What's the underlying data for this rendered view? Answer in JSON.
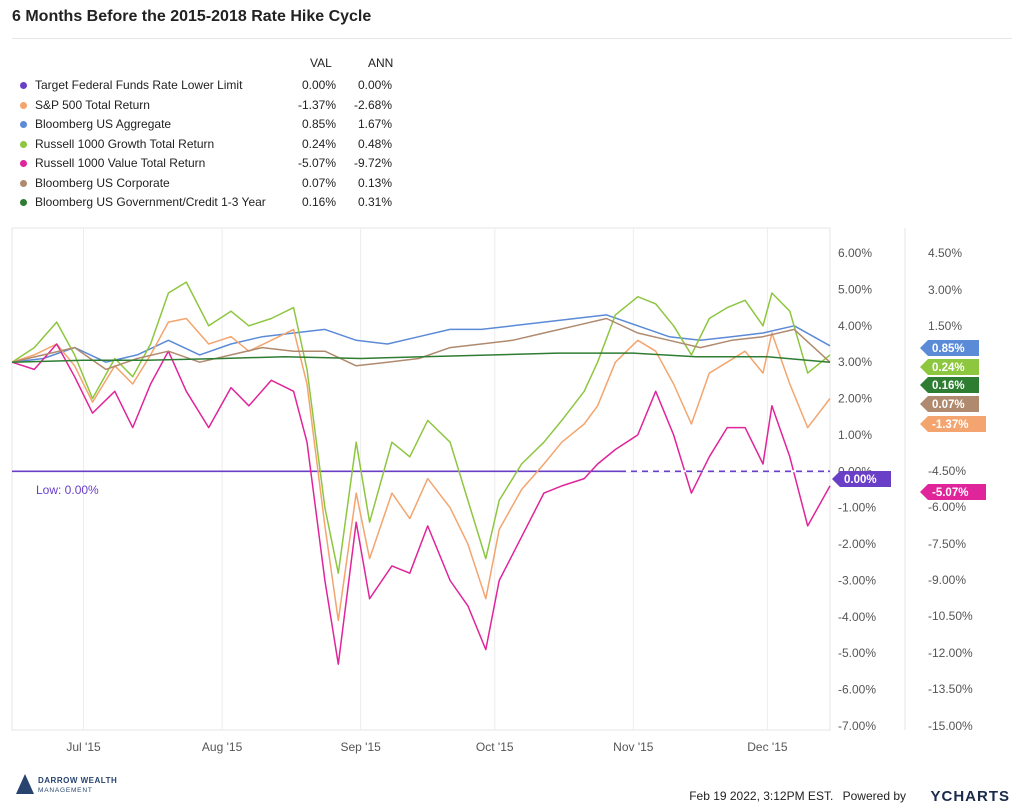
{
  "header": {
    "title": "6 Months Before the 2015-2018 Rate Hike Cycle"
  },
  "legend": {
    "col_val": "VAL",
    "col_ann": "ANN",
    "items": [
      {
        "name": "Target Federal Funds Rate Lower Limit",
        "val": "0.00%",
        "ann": "0.00%",
        "color": "#6a3fc8"
      },
      {
        "name": "S&P 500 Total Return",
        "val": "-1.37%",
        "ann": "-2.68%",
        "color": "#f4a46e"
      },
      {
        "name": "Bloomberg US Aggregate",
        "val": "0.85%",
        "ann": "1.67%",
        "color": "#5b8ad6"
      },
      {
        "name": "Russell 1000 Growth Total Return",
        "val": "0.24%",
        "ann": "0.48%",
        "color": "#8dc63f"
      },
      {
        "name": "Russell 1000 Value Total Return",
        "val": "-5.07%",
        "ann": "-9.72%",
        "color": "#e0249a"
      },
      {
        "name": "Bloomberg US Corporate",
        "val": "0.07%",
        "ann": "0.13%",
        "color": "#b08a6e"
      },
      {
        "name": "Bloomberg US Government/Credit 1-3 Year",
        "val": "0.16%",
        "ann": "0.31%",
        "color": "#2e7d32"
      }
    ]
  },
  "chart_data": {
    "type": "line",
    "title": "6 Months Before the 2015-2018 Rate Hike Cycle",
    "x_range": [
      "2015-06-15",
      "2015-12-15"
    ],
    "x_ticks": [
      {
        "label": "Jul '15",
        "date": "2015-07-01"
      },
      {
        "label": "Aug '15",
        "date": "2015-08-01"
      },
      {
        "label": "Sep '15",
        "date": "2015-09-01"
      },
      {
        "label": "Oct '15",
        "date": "2015-10-01"
      },
      {
        "label": "Nov '15",
        "date": "2015-11-01"
      },
      {
        "label": "Dec '15",
        "date": "2015-12-01"
      }
    ],
    "y_left": {
      "min": -7,
      "max": 6,
      "ticks": [
        "6.00%",
        "5.00%",
        "4.00%",
        "3.00%",
        "2.00%",
        "1.00%",
        "0.00%",
        "-1.00%",
        "-2.00%",
        "-3.00%",
        "-4.00%",
        "-5.00%",
        "-6.00%",
        "-7.00%"
      ]
    },
    "y_right": {
      "ticks": [
        "4.50%",
        "3.00%",
        "1.50%",
        "",
        "-4.50%",
        "-6.00%",
        "-7.50%",
        "-9.00%",
        "-10.50%",
        "-12.00%",
        "-13.50%",
        "-15.00%"
      ]
    },
    "grid": "vertical",
    "annotation": "Low: 0.00%",
    "end_labels": [
      {
        "text": "0.85%",
        "color": "#5b8ad6"
      },
      {
        "text": "0.24%",
        "color": "#8dc63f"
      },
      {
        "text": "0.16%",
        "color": "#2e7d32"
      },
      {
        "text": "0.07%",
        "color": "#b08a6e"
      },
      {
        "text": "-1.37%",
        "color": "#f4a46e"
      },
      {
        "text": "0.00%",
        "color": "#6a3fc8"
      },
      {
        "text": "-5.07%",
        "color": "#e0249a"
      }
    ],
    "series": [
      {
        "name": "Target Federal Funds Rate Lower Limit",
        "color": "#6a3fc8",
        "points": [
          [
            "2015-06-15",
            0
          ],
          [
            "2015-12-15",
            0
          ]
        ]
      },
      {
        "name": "Bloomberg US Aggregate",
        "color": "#5b8ad6",
        "points": [
          [
            "2015-06-15",
            3.0
          ],
          [
            "2015-06-22",
            3.1
          ],
          [
            "2015-06-29",
            3.4
          ],
          [
            "2015-07-06",
            3.0
          ],
          [
            "2015-07-13",
            3.2
          ],
          [
            "2015-07-20",
            3.6
          ],
          [
            "2015-07-27",
            3.2
          ],
          [
            "2015-08-03",
            3.5
          ],
          [
            "2015-08-10",
            3.7
          ],
          [
            "2015-08-17",
            3.8
          ],
          [
            "2015-08-24",
            3.9
          ],
          [
            "2015-08-31",
            3.6
          ],
          [
            "2015-09-07",
            3.5
          ],
          [
            "2015-09-14",
            3.7
          ],
          [
            "2015-09-21",
            3.9
          ],
          [
            "2015-09-28",
            3.9
          ],
          [
            "2015-10-05",
            4.0
          ],
          [
            "2015-10-12",
            4.1
          ],
          [
            "2015-10-19",
            4.2
          ],
          [
            "2015-10-26",
            4.3
          ],
          [
            "2015-11-02",
            4.0
          ],
          [
            "2015-11-09",
            3.7
          ],
          [
            "2015-11-16",
            3.6
          ],
          [
            "2015-11-23",
            3.7
          ],
          [
            "2015-11-30",
            3.8
          ],
          [
            "2015-12-07",
            4.0
          ],
          [
            "2015-12-15",
            3.45
          ]
        ]
      },
      {
        "name": "Russell 1000 Growth Total Return",
        "color": "#8dc63f",
        "points": [
          [
            "2015-06-15",
            3.0
          ],
          [
            "2015-06-20",
            3.4
          ],
          [
            "2015-06-25",
            4.1
          ],
          [
            "2015-06-29",
            3.2
          ],
          [
            "2015-07-03",
            2.0
          ],
          [
            "2015-07-08",
            3.1
          ],
          [
            "2015-07-12",
            2.6
          ],
          [
            "2015-07-16",
            3.5
          ],
          [
            "2015-07-20",
            4.9
          ],
          [
            "2015-07-24",
            5.2
          ],
          [
            "2015-07-29",
            4.0
          ],
          [
            "2015-08-03",
            4.4
          ],
          [
            "2015-08-07",
            4.0
          ],
          [
            "2015-08-12",
            4.2
          ],
          [
            "2015-08-17",
            4.5
          ],
          [
            "2015-08-20",
            2.8
          ],
          [
            "2015-08-24",
            -1.0
          ],
          [
            "2015-08-27",
            -2.8
          ],
          [
            "2015-08-31",
            0.8
          ],
          [
            "2015-09-03",
            -1.4
          ],
          [
            "2015-09-08",
            0.8
          ],
          [
            "2015-09-12",
            0.4
          ],
          [
            "2015-09-16",
            1.4
          ],
          [
            "2015-09-21",
            0.8
          ],
          [
            "2015-09-25",
            -0.8
          ],
          [
            "2015-09-29",
            -2.4
          ],
          [
            "2015-10-02",
            -0.8
          ],
          [
            "2015-10-07",
            0.2
          ],
          [
            "2015-10-12",
            0.8
          ],
          [
            "2015-10-16",
            1.4
          ],
          [
            "2015-10-21",
            2.2
          ],
          [
            "2015-10-24",
            3.0
          ],
          [
            "2015-10-28",
            4.3
          ],
          [
            "2015-11-02",
            4.8
          ],
          [
            "2015-11-06",
            4.6
          ],
          [
            "2015-11-10",
            4.0
          ],
          [
            "2015-11-14",
            3.2
          ],
          [
            "2015-11-18",
            4.2
          ],
          [
            "2015-11-22",
            4.5
          ],
          [
            "2015-11-26",
            4.7
          ],
          [
            "2015-11-30",
            4.0
          ],
          [
            "2015-12-02",
            4.9
          ],
          [
            "2015-12-06",
            4.4
          ],
          [
            "2015-12-10",
            2.7
          ],
          [
            "2015-12-15",
            3.2
          ]
        ]
      },
      {
        "name": "S&P 500 Total Return",
        "color": "#f4a46e",
        "points": [
          [
            "2015-06-15",
            3.0
          ],
          [
            "2015-06-20",
            3.2
          ],
          [
            "2015-06-25",
            3.5
          ],
          [
            "2015-06-29",
            2.9
          ],
          [
            "2015-07-03",
            1.9
          ],
          [
            "2015-07-08",
            2.9
          ],
          [
            "2015-07-12",
            2.4
          ],
          [
            "2015-07-16",
            3.2
          ],
          [
            "2015-07-20",
            4.1
          ],
          [
            "2015-07-24",
            4.2
          ],
          [
            "2015-07-29",
            3.5
          ],
          [
            "2015-08-03",
            3.7
          ],
          [
            "2015-08-07",
            3.3
          ],
          [
            "2015-08-12",
            3.6
          ],
          [
            "2015-08-17",
            3.9
          ],
          [
            "2015-08-20",
            2.4
          ],
          [
            "2015-08-24",
            -1.5
          ],
          [
            "2015-08-27",
            -4.1
          ],
          [
            "2015-08-31",
            -0.6
          ],
          [
            "2015-09-03",
            -2.4
          ],
          [
            "2015-09-08",
            -0.6
          ],
          [
            "2015-09-12",
            -1.3
          ],
          [
            "2015-09-16",
            -0.2
          ],
          [
            "2015-09-21",
            -1.0
          ],
          [
            "2015-09-25",
            -2.0
          ],
          [
            "2015-09-29",
            -3.5
          ],
          [
            "2015-10-02",
            -1.6
          ],
          [
            "2015-10-07",
            -0.5
          ],
          [
            "2015-10-12",
            0.2
          ],
          [
            "2015-10-16",
            0.8
          ],
          [
            "2015-10-21",
            1.3
          ],
          [
            "2015-10-24",
            1.8
          ],
          [
            "2015-10-28",
            3.0
          ],
          [
            "2015-11-02",
            3.6
          ],
          [
            "2015-11-06",
            3.3
          ],
          [
            "2015-11-10",
            2.4
          ],
          [
            "2015-11-14",
            1.3
          ],
          [
            "2015-11-18",
            2.7
          ],
          [
            "2015-11-22",
            3.0
          ],
          [
            "2015-11-26",
            3.3
          ],
          [
            "2015-11-30",
            2.7
          ],
          [
            "2015-12-02",
            3.8
          ],
          [
            "2015-12-06",
            2.4
          ],
          [
            "2015-12-10",
            1.2
          ],
          [
            "2015-12-15",
            2.0
          ]
        ]
      },
      {
        "name": "Russell 1000 Value Total Return",
        "color": "#e0249a",
        "points": [
          [
            "2015-06-15",
            3.0
          ],
          [
            "2015-06-20",
            2.8
          ],
          [
            "2015-06-25",
            3.5
          ],
          [
            "2015-06-29",
            2.6
          ],
          [
            "2015-07-03",
            1.6
          ],
          [
            "2015-07-08",
            2.2
          ],
          [
            "2015-07-12",
            1.2
          ],
          [
            "2015-07-16",
            2.4
          ],
          [
            "2015-07-20",
            3.3
          ],
          [
            "2015-07-24",
            2.2
          ],
          [
            "2015-07-29",
            1.2
          ],
          [
            "2015-08-03",
            2.3
          ],
          [
            "2015-08-07",
            1.8
          ],
          [
            "2015-08-12",
            2.5
          ],
          [
            "2015-08-17",
            2.2
          ],
          [
            "2015-08-20",
            0.8
          ],
          [
            "2015-08-24",
            -3.0
          ],
          [
            "2015-08-27",
            -5.3
          ],
          [
            "2015-08-31",
            -1.4
          ],
          [
            "2015-09-03",
            -3.5
          ],
          [
            "2015-09-08",
            -2.6
          ],
          [
            "2015-09-12",
            -2.8
          ],
          [
            "2015-09-16",
            -1.5
          ],
          [
            "2015-09-21",
            -3.0
          ],
          [
            "2015-09-25",
            -3.7
          ],
          [
            "2015-09-29",
            -4.9
          ],
          [
            "2015-10-02",
            -3.0
          ],
          [
            "2015-10-07",
            -1.8
          ],
          [
            "2015-10-12",
            -0.6
          ],
          [
            "2015-10-16",
            -0.4
          ],
          [
            "2015-10-21",
            -0.2
          ],
          [
            "2015-10-24",
            0.2
          ],
          [
            "2015-10-28",
            0.6
          ],
          [
            "2015-11-02",
            1.0
          ],
          [
            "2015-11-06",
            2.2
          ],
          [
            "2015-11-10",
            1.0
          ],
          [
            "2015-11-14",
            -0.6
          ],
          [
            "2015-11-18",
            0.4
          ],
          [
            "2015-11-22",
            1.2
          ],
          [
            "2015-11-26",
            1.2
          ],
          [
            "2015-11-30",
            0.2
          ],
          [
            "2015-12-02",
            1.8
          ],
          [
            "2015-12-06",
            0.4
          ],
          [
            "2015-12-10",
            -1.5
          ],
          [
            "2015-12-15",
            -0.4
          ]
        ]
      },
      {
        "name": "Bloomberg US Corporate",
        "color": "#b08a6e",
        "points": [
          [
            "2015-06-15",
            3.0
          ],
          [
            "2015-06-22",
            3.2
          ],
          [
            "2015-06-29",
            3.4
          ],
          [
            "2015-07-06",
            2.8
          ],
          [
            "2015-07-13",
            3.1
          ],
          [
            "2015-07-20",
            3.3
          ],
          [
            "2015-07-27",
            3.0
          ],
          [
            "2015-08-03",
            3.2
          ],
          [
            "2015-08-10",
            3.4
          ],
          [
            "2015-08-17",
            3.3
          ],
          [
            "2015-08-24",
            3.3
          ],
          [
            "2015-08-31",
            2.9
          ],
          [
            "2015-09-07",
            3.0
          ],
          [
            "2015-09-14",
            3.1
          ],
          [
            "2015-09-21",
            3.4
          ],
          [
            "2015-09-28",
            3.5
          ],
          [
            "2015-10-05",
            3.6
          ],
          [
            "2015-10-12",
            3.8
          ],
          [
            "2015-10-19",
            4.0
          ],
          [
            "2015-10-26",
            4.2
          ],
          [
            "2015-11-02",
            3.8
          ],
          [
            "2015-11-09",
            3.6
          ],
          [
            "2015-11-16",
            3.4
          ],
          [
            "2015-11-23",
            3.6
          ],
          [
            "2015-11-30",
            3.7
          ],
          [
            "2015-12-07",
            3.9
          ],
          [
            "2015-12-15",
            3.0
          ]
        ]
      },
      {
        "name": "Bloomberg US Government/Credit 1-3 Year",
        "color": "#2e7d32",
        "points": [
          [
            "2015-06-15",
            3.0
          ],
          [
            "2015-07-01",
            3.05
          ],
          [
            "2015-07-15",
            3.05
          ],
          [
            "2015-08-01",
            3.1
          ],
          [
            "2015-08-15",
            3.15
          ],
          [
            "2015-09-01",
            3.1
          ],
          [
            "2015-09-15",
            3.15
          ],
          [
            "2015-10-01",
            3.2
          ],
          [
            "2015-10-15",
            3.25
          ],
          [
            "2015-11-01",
            3.25
          ],
          [
            "2015-11-15",
            3.15
          ],
          [
            "2015-12-01",
            3.15
          ],
          [
            "2015-12-15",
            3.0
          ]
        ]
      }
    ]
  },
  "footer": {
    "timestamp": "Feb 19 2022, 3:12PM EST.",
    "powered_by": "Powered by",
    "brand": "YCHARTS",
    "logo_line1": "DARROW WEALTH",
    "logo_line2": "MANAGEMENT"
  }
}
